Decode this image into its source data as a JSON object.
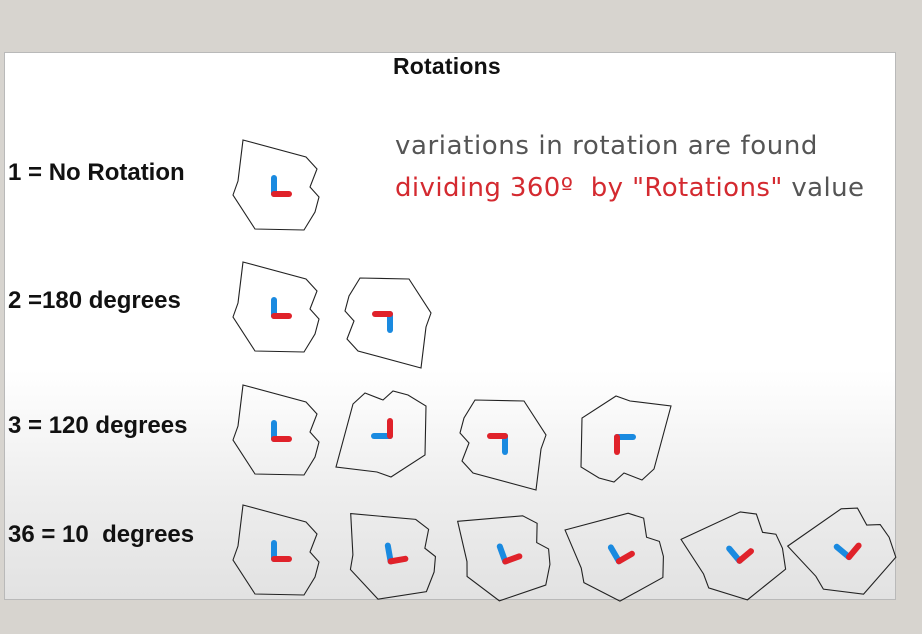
{
  "title": "Rotations",
  "rows": [
    {
      "label": "1 = No Rotation",
      "rotations": 1,
      "shown_copies": 1
    },
    {
      "label": "2 =180 degrees",
      "rotations": 2,
      "shown_copies": 2
    },
    {
      "label": "3 = 120 degrees",
      "rotations": 3,
      "shown_copies": 4
    },
    {
      "label": "36 = 10  degrees",
      "rotations": 36,
      "shown_copies": 6
    }
  ],
  "note": {
    "line1": "variations in rotation are found",
    "line2_highlight": "dividing 360º  by \"Rotations\"",
    "line2_rest": " value"
  },
  "colors": {
    "arm_blue": "#1a8ae0",
    "arm_red": "#e0222a",
    "highlight_red": "#d42a30",
    "text_gray": "#555555"
  }
}
